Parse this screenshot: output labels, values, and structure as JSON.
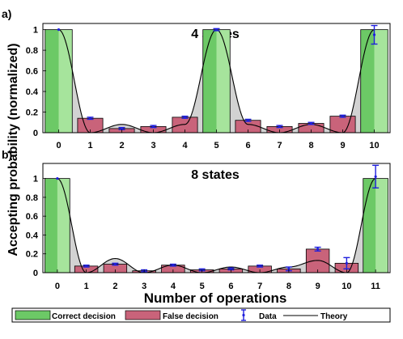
{
  "ylabel": "Accepting probability (normalized)",
  "xlabel": "Number of operations",
  "legend": {
    "items": [
      {
        "label": "Correct decision",
        "kind": "correct"
      },
      {
        "label": "False decision",
        "kind": "false"
      },
      {
        "label": "Data",
        "kind": "data"
      },
      {
        "label": "Theory",
        "kind": "theory"
      }
    ]
  },
  "colors": {
    "correct": "#6cc966",
    "correct_light": "#a6e49c",
    "false": "#c9637a",
    "theory_fill": "#d2d2d2",
    "data": "#1f1fdd",
    "theory": "#000000"
  },
  "chart_data": [
    {
      "panel_label": "a)",
      "title": "4 states",
      "type": "bar",
      "categories": [
        "0",
        "1",
        "2",
        "3",
        "4",
        "5",
        "6",
        "7",
        "8",
        "9",
        "10"
      ],
      "correct_indices": [
        0,
        5,
        10
      ],
      "values": [
        1.0,
        0.14,
        0.04,
        0.06,
        0.15,
        1.0,
        0.12,
        0.06,
        0.09,
        0.16,
        1.0
      ],
      "data_points": [
        1.0,
        0.14,
        0.04,
        0.06,
        0.15,
        1.0,
        0.12,
        0.06,
        0.09,
        0.16,
        0.95
      ],
      "data_errors": [
        0.0,
        0.01,
        0.01,
        0.01,
        0.01,
        0.01,
        0.01,
        0.01,
        0.01,
        0.01,
        0.09
      ],
      "theory_extrema": [
        1.0,
        0.0,
        0.08,
        0.0,
        0.08,
        1.0,
        0.08,
        0.0,
        0.08,
        0.0,
        1.0
      ],
      "yticks": [
        0,
        0.2,
        0.4,
        0.6,
        0.8,
        1
      ],
      "ylim": [
        0,
        1.06
      ],
      "xlim": [
        -0.5,
        10.5
      ]
    },
    {
      "panel_label": "b)",
      "title": "8 states",
      "type": "bar",
      "categories": [
        "0",
        "1",
        "2",
        "3",
        "4",
        "5",
        "6",
        "7",
        "8",
        "9",
        "10",
        "11"
      ],
      "correct_indices": [
        0,
        11
      ],
      "values": [
        1.0,
        0.07,
        0.09,
        0.02,
        0.08,
        0.03,
        0.04,
        0.07,
        0.04,
        0.25,
        0.1,
        1.0
      ],
      "data_points": [
        1.0,
        0.07,
        0.09,
        0.02,
        0.08,
        0.03,
        0.04,
        0.07,
        0.04,
        0.25,
        0.1,
        1.02
      ],
      "data_errors": [
        0.0,
        0.01,
        0.01,
        0.01,
        0.01,
        0.01,
        0.01,
        0.01,
        0.02,
        0.02,
        0.06,
        0.12
      ],
      "theory_extrema": [
        1.0,
        0.0,
        0.15,
        0.0,
        0.08,
        0.0,
        0.06,
        0.0,
        0.06,
        0.13,
        0.0,
        1.0
      ],
      "yticks": [
        0,
        0.2,
        0.4,
        0.6,
        0.8,
        1
      ],
      "ylim": [
        0,
        1.16
      ],
      "xlim": [
        -0.5,
        11.5
      ]
    }
  ]
}
